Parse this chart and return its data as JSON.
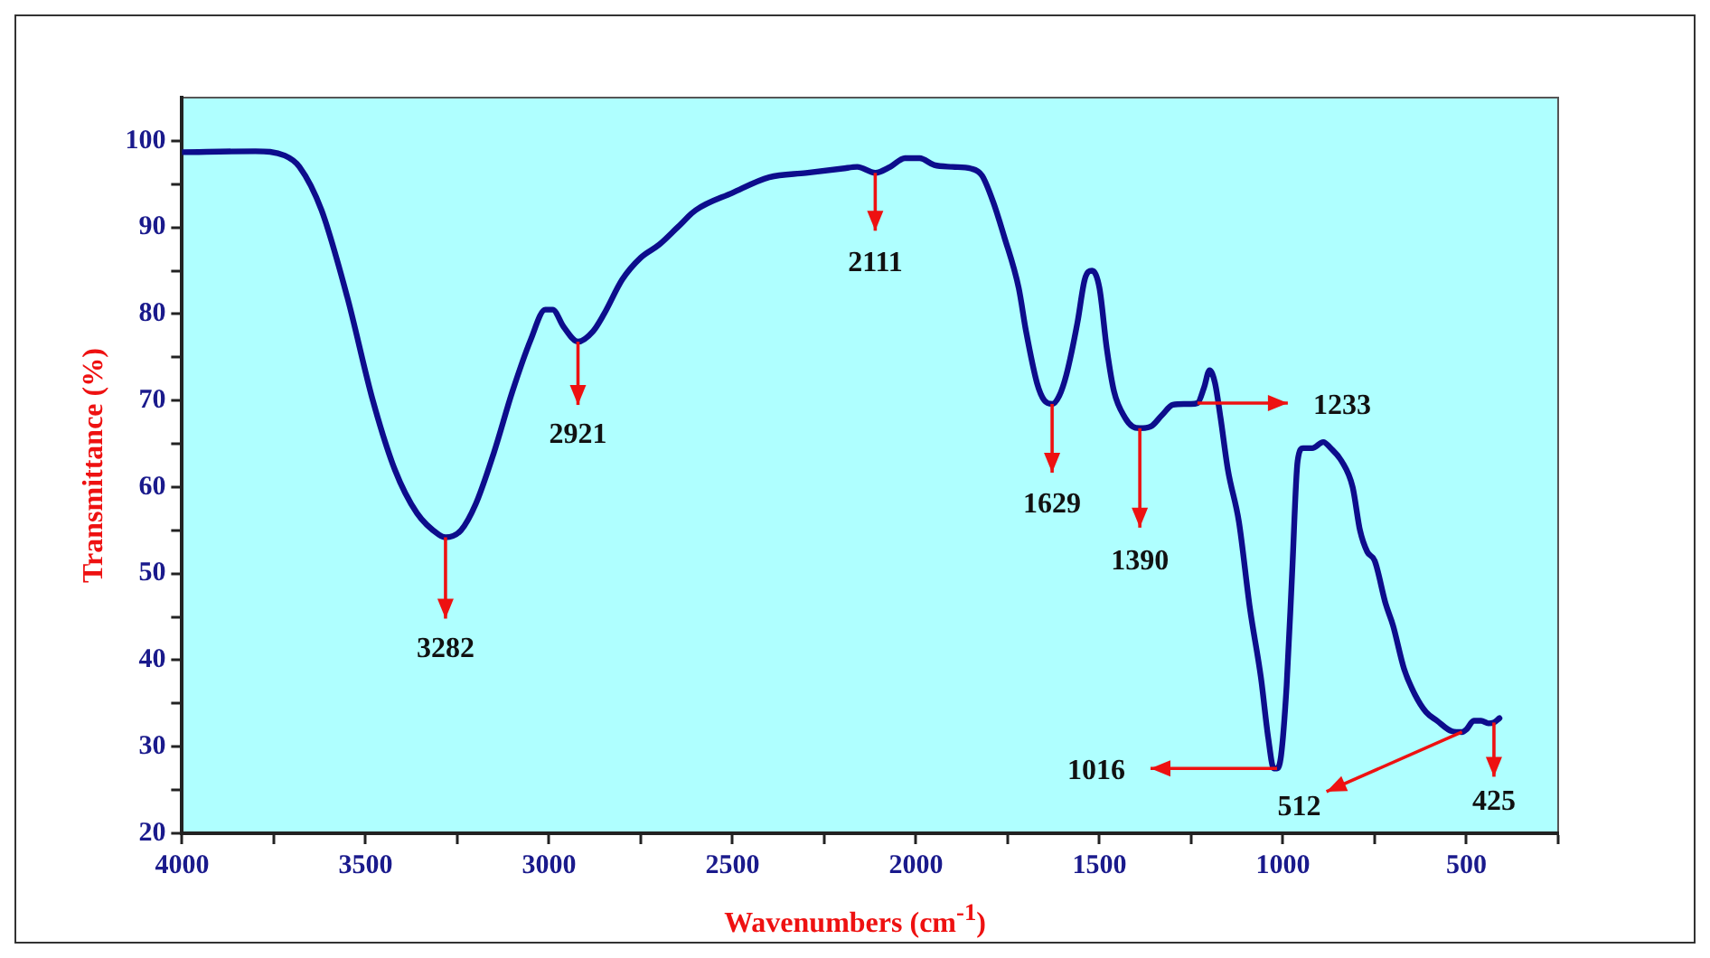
{
  "chart_data": {
    "type": "line",
    "xlabel": "Wavenumbers (cm$^{-1}$)",
    "ylabel": "Transmittance (%)",
    "xlim": [
      4000,
      250
    ],
    "xticks": [
      4000,
      {
        "value": 3750,
        "label": null
      },
      3500,
      {
        "value": 3250,
        "label": null
      },
      3000,
      {
        "value": 2750,
        "label": null
      },
      2500,
      {
        "value": 2250,
        "label": null
      },
      2000,
      {
        "value": 1750,
        "label": null
      },
      1500,
      {
        "value": 1250,
        "label": null
      },
      1000,
      {
        "value": 750,
        "label": null
      },
      500,
      {
        "value": 250,
        "label": null
      }
    ],
    "ylim": [
      20,
      105
    ],
    "yticks": [
      20,
      {
        "value": 25,
        "label": null
      },
      30,
      {
        "value": 35,
        "label": null
      },
      40,
      {
        "value": 45,
        "label": null
      },
      50,
      {
        "value": 55,
        "label": null
      },
      60,
      {
        "value": 65,
        "label": null
      },
      70,
      {
        "value": 75,
        "label": null
      },
      80,
      {
        "value": 85,
        "label": null
      },
      90,
      {
        "value": 95,
        "label": null
      },
      100
    ],
    "grid": false,
    "legend": false,
    "marker": "none",
    "line_style": "solid",
    "series": [
      {
        "color": "#0d0d8c",
        "x": [
          4000,
          3800,
          3720,
          3680,
          3620,
          3550,
          3480,
          3420,
          3360,
          3300,
          3282,
          3240,
          3200,
          3150,
          3100,
          3050,
          3010,
          2990,
          2960,
          2921,
          2880,
          2850,
          2800,
          2750,
          2700,
          2650,
          2600,
          2500,
          2400,
          2300,
          2200,
          2160,
          2111,
          2070,
          2030,
          1990,
          1950,
          1900,
          1850,
          1820,
          1790,
          1760,
          1720,
          1700,
          1670,
          1650,
          1629,
          1610,
          1590,
          1560,
          1540,
          1520,
          1500,
          1480,
          1460,
          1430,
          1410,
          1390,
          1360,
          1330,
          1300,
          1270,
          1250,
          1233,
          1215,
          1200,
          1185,
          1170,
          1150,
          1120,
          1090,
          1060,
          1040,
          1025,
          1016,
          1005,
          990,
          975,
          960,
          945,
          920,
          890,
          870,
          840,
          810,
          790,
          770,
          750,
          720,
          700,
          670,
          640,
          610,
          580,
          540,
          512,
          500,
          480,
          460,
          440,
          425,
          410
        ],
        "values": [
          98.7,
          98.8,
          98.3,
          97,
          92,
          82,
          70,
          62,
          57,
          54.5,
          54.2,
          55,
          58,
          64,
          71,
          77,
          80.5,
          80.5,
          78.5,
          76.8,
          78,
          80,
          84,
          86.5,
          88,
          90,
          92,
          94,
          95.8,
          96.3,
          96.8,
          97,
          96.3,
          97,
          98,
          98,
          97.2,
          97,
          96.8,
          96,
          93,
          89,
          83,
          78,
          72,
          70,
          69.6,
          70.5,
          73,
          79,
          84,
          85,
          83,
          76,
          71,
          68,
          67,
          66.8,
          67,
          68.3,
          69.5,
          69.6,
          69.6,
          69.7,
          71.5,
          73.5,
          72,
          68,
          62,
          56,
          46,
          38,
          31,
          27.5,
          27.5,
          29,
          37,
          50,
          63,
          64.5,
          64.5,
          65.2,
          64.5,
          63,
          60,
          55,
          52.5,
          51.5,
          46.5,
          44,
          39,
          36,
          34,
          33,
          31.8,
          31.7,
          32,
          33,
          33,
          32.7,
          32.8,
          33.3
        ]
      }
    ],
    "annotations": [
      {
        "text": "3282",
        "x": 3282,
        "y": 54.2
      },
      {
        "text": "2921",
        "x": 2921,
        "y": 76.8
      },
      {
        "text": "2111",
        "x": 2111,
        "y": 96.3
      },
      {
        "text": "1629",
        "x": 1629,
        "y": 69.6
      },
      {
        "text": "1390",
        "x": 1390,
        "y": 66.8
      },
      {
        "text": "1233",
        "x": 1233,
        "y": 69.7
      },
      {
        "text": "1016",
        "x": 1016,
        "y": 27.5
      },
      {
        "text": "512",
        "x": 512,
        "y": 31.7
      },
      {
        "text": "425",
        "x": 425,
        "y": 32.8
      }
    ]
  }
}
